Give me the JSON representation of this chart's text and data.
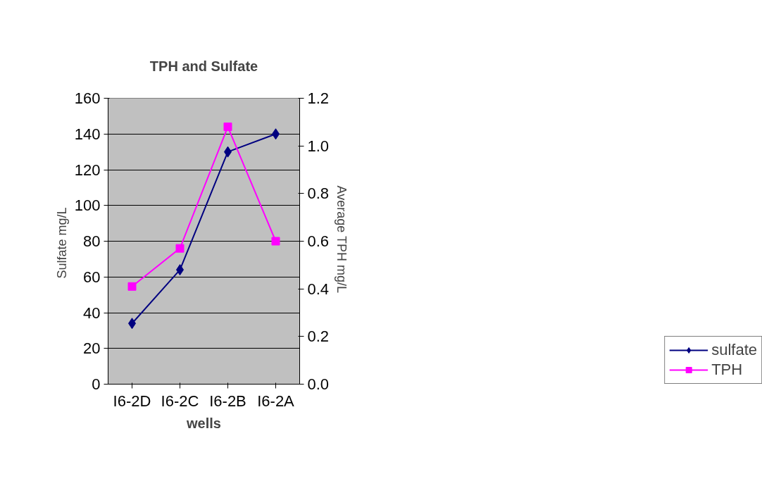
{
  "chart_data": {
    "type": "line",
    "title": "TPH and Sulfate",
    "xlabel": "wells",
    "ylabel": "Sulfate  mg/L",
    "y2label": "Average TPH  mg/L",
    "categories": [
      "I6-2D",
      "I6-2C",
      "I6-2B",
      "I6-2A"
    ],
    "series": [
      {
        "name": "sulfate",
        "color": "#000080",
        "values": [
          34,
          64,
          130,
          140
        ],
        "marker": "diamond"
      },
      {
        "name": "TPH",
        "color": "#ff00ff",
        "values": [
          0.41,
          0.57,
          1.08,
          0.6
        ],
        "marker": "square",
        "axis": "y2"
      }
    ],
    "ylim": [
      0,
      160
    ],
    "yticks": [
      0,
      20,
      40,
      60,
      80,
      100,
      120,
      140,
      160
    ],
    "y2lim": [
      0,
      1.2
    ],
    "y2ticks": [
      {
        "value": 0,
        "label": "0.0"
      },
      0.2,
      0.4,
      0.6,
      0.8,
      {
        "value": 1,
        "label": "1.0"
      },
      1.2
    ],
    "grid": "y",
    "legend": "bottom right",
    "line_style": "solid"
  }
}
